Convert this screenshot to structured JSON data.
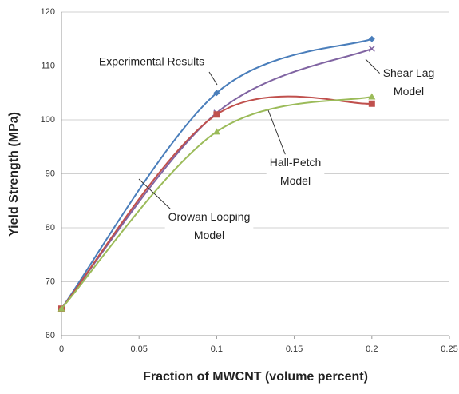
{
  "chart_data": {
    "type": "line",
    "x_label": "Fraction of MWCNT (volume percent)",
    "y_label": "Yield Strength (MPa)",
    "x": [
      0,
      0.1,
      0.2
    ],
    "series": [
      {
        "name": "Experimental Results",
        "color": "#4a7ebb",
        "marker": "diamond",
        "values": [
          65,
          105,
          115
        ]
      },
      {
        "name": "Shear Lag Model",
        "color": "#8064a2",
        "marker": "x",
        "values": [
          65,
          101.3,
          113.2
        ]
      },
      {
        "name": "Hall-Petch Model",
        "color": "#c0504d",
        "marker": "square",
        "values": [
          65,
          101,
          103
        ]
      },
      {
        "name": "Orowan Looping Model",
        "color": "#9bbb59",
        "marker": "triangle",
        "values": [
          65,
          97.8,
          104.3
        ]
      }
    ],
    "annotations": [
      {
        "lines": [
          "Experimental Results"
        ]
      },
      {
        "lines": [
          "Shear Lag",
          "Model"
        ]
      },
      {
        "lines": [
          "Hall-Petch",
          "Model"
        ]
      },
      {
        "lines": [
          "Orowan Looping",
          "Model"
        ]
      }
    ],
    "xlim": [
      0,
      0.25
    ],
    "xticks": [
      0,
      0.05,
      0.1,
      0.15,
      0.2,
      0.25
    ],
    "ylim": [
      60,
      120
    ],
    "yticks": [
      60,
      70,
      80,
      90,
      100,
      110,
      120
    ],
    "grid": true
  }
}
